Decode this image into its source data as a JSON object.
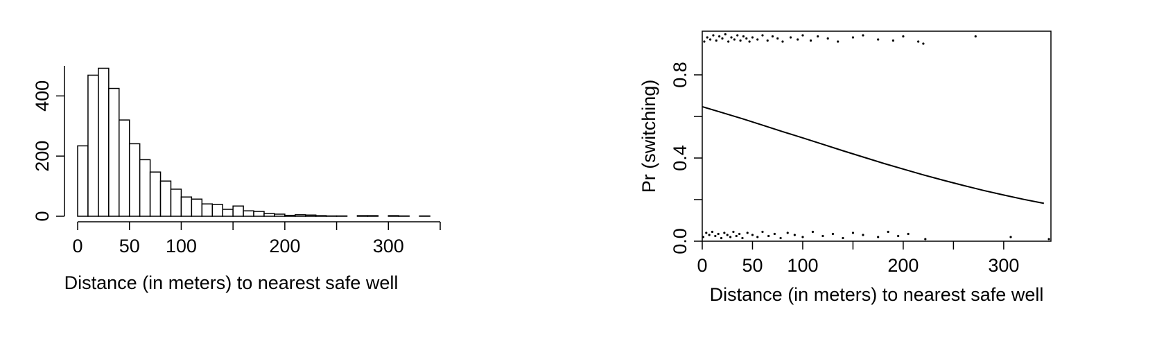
{
  "chart_data": [
    {
      "type": "histogram",
      "xlabel": "Distance (in meters) to nearest safe well",
      "bins": [
        0,
        10,
        20,
        30,
        40,
        50,
        60,
        70,
        80,
        90,
        100,
        110,
        120,
        130,
        140,
        150,
        160,
        170,
        180,
        190,
        200,
        210,
        220,
        230,
        240,
        250,
        260,
        270,
        280,
        290,
        300,
        310,
        320,
        330,
        340
      ],
      "values": [
        234,
        469,
        492,
        425,
        320,
        241,
        188,
        147,
        117,
        90,
        64,
        57,
        41,
        39,
        23,
        34,
        18,
        16,
        9,
        7,
        3,
        5,
        4,
        2,
        1,
        1,
        0,
        2,
        2,
        0,
        2,
        1,
        0,
        1
      ],
      "color": "#ffffff",
      "xlim": [
        0,
        350
      ],
      "ylim": [
        0,
        500
      ],
      "xticks": [
        0,
        50,
        100,
        {
          "value": 150,
          "label": null
        },
        200,
        {
          "value": 250,
          "label": null
        },
        300,
        {
          "value": 350,
          "label": null
        }
      ],
      "yticks": [
        0,
        200,
        400
      ]
    },
    {
      "type": "scatter",
      "xlabel": "Distance (in meters) to nearest safe well",
      "ylabel": "Pr (switching)",
      "xlim": [
        0,
        347
      ],
      "ylim": [
        0,
        1.01
      ],
      "xticks": [
        0,
        50,
        100,
        {
          "value": 150,
          "label": null
        },
        200,
        {
          "value": 250,
          "label": null
        },
        300
      ],
      "yticks": [
        {
          "value": 0,
          "label": "0.0"
        },
        {
          "value": 0.2,
          "label": null
        },
        0.4,
        {
          "value": 0.6,
          "label": null
        },
        0.8
      ],
      "series": [
        {
          "type": "scatter",
          "color": "#000000",
          "x": [
            2,
            5,
            8,
            11,
            14,
            17,
            20,
            23,
            26,
            29,
            32,
            35,
            38,
            41,
            44,
            47,
            50,
            55,
            60,
            65,
            70,
            75,
            80,
            88,
            95,
            100,
            108,
            115,
            125,
            135,
            150,
            160,
            175,
            190,
            200,
            215,
            220,
            272,
            1,
            4,
            7,
            10,
            13,
            16,
            19,
            22,
            25,
            28,
            31,
            34,
            37,
            40,
            45,
            50,
            55,
            60,
            66,
            72,
            78,
            85,
            92,
            100,
            110,
            120,
            130,
            140,
            150,
            160,
            175,
            185,
            195,
            205,
            222,
            307,
            345
          ],
          "values": [
            0.96,
            0.98,
            0.97,
            0.99,
            0.965,
            0.985,
            0.975,
            0.995,
            0.96,
            0.98,
            0.97,
            0.99,
            0.965,
            0.985,
            0.975,
            0.96,
            0.98,
            0.97,
            0.99,
            0.965,
            0.985,
            0.975,
            0.96,
            0.98,
            0.97,
            0.99,
            0.965,
            0.985,
            0.975,
            0.96,
            0.98,
            0.99,
            0.97,
            0.965,
            0.985,
            0.96,
            0.95,
            0.985,
            0.02,
            0.04,
            0.03,
            0.045,
            0.025,
            0.035,
            0.015,
            0.04,
            0.03,
            0.02,
            0.045,
            0.025,
            0.035,
            0.015,
            0.04,
            0.03,
            0.02,
            0.045,
            0.025,
            0.035,
            0.015,
            0.04,
            0.03,
            0.02,
            0.045,
            0.025,
            0.035,
            0.015,
            0.04,
            0.03,
            0.02,
            0.045,
            0.025,
            0.035,
            0.01,
            0.02,
            0.01
          ]
        },
        {
          "type": "line",
          "color": "#000000",
          "x": [
            0,
            20,
            40,
            60,
            80,
            100,
            120,
            140,
            160,
            180,
            200,
            220,
            240,
            260,
            280,
            300,
            320,
            340
          ],
          "values": [
            0.647,
            0.618,
            0.589,
            0.558,
            0.527,
            0.497,
            0.466,
            0.435,
            0.405,
            0.375,
            0.347,
            0.319,
            0.293,
            0.268,
            0.244,
            0.222,
            0.201,
            0.182
          ]
        }
      ]
    }
  ]
}
